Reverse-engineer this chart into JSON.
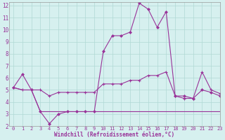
{
  "xlabel": "Windchill (Refroidissement éolien,°C)",
  "xlim": [
    -0.5,
    23
  ],
  "ylim": [
    2,
    12.3
  ],
  "yticks": [
    2,
    3,
    4,
    5,
    6,
    7,
    8,
    9,
    10,
    11,
    12
  ],
  "xticks": [
    0,
    1,
    2,
    3,
    4,
    5,
    6,
    7,
    8,
    9,
    10,
    11,
    12,
    13,
    14,
    15,
    16,
    17,
    18,
    19,
    20,
    21,
    22,
    23
  ],
  "line_color": "#993399",
  "bg_color": "#d6f0ef",
  "grid_color": "#b0d8d4",
  "line1_x": [
    0,
    1,
    2,
    3,
    4,
    5,
    6,
    7,
    8,
    9,
    10,
    11,
    12,
    13,
    14,
    15,
    16,
    17,
    18,
    19,
    20,
    21,
    22,
    23
  ],
  "line1_y": [
    5.2,
    6.3,
    5.0,
    3.2,
    2.2,
    3.0,
    3.2,
    3.2,
    3.2,
    3.2,
    8.2,
    9.5,
    9.5,
    9.8,
    12.2,
    11.7,
    10.2,
    11.5,
    4.5,
    4.5,
    4.3,
    5.0,
    4.8,
    4.5
  ],
  "line2_x": [
    0,
    1,
    2,
    3,
    4,
    5,
    6,
    7,
    8,
    9,
    10,
    11,
    12,
    13,
    14,
    15,
    16,
    17,
    18,
    19,
    20,
    21,
    22,
    23
  ],
  "line2_y": [
    5.2,
    5.0,
    5.0,
    5.0,
    4.5,
    4.8,
    4.8,
    4.8,
    4.8,
    4.8,
    5.5,
    5.5,
    5.5,
    5.8,
    5.8,
    6.2,
    6.2,
    6.5,
    4.5,
    4.3,
    4.3,
    6.5,
    5.0,
    4.7
  ],
  "line3_x": [
    0,
    1,
    2,
    3,
    4,
    5,
    6,
    7,
    8,
    9,
    10,
    11,
    12,
    13,
    14,
    15,
    16,
    17,
    18,
    19,
    20,
    21,
    22,
    23
  ],
  "line3_y": [
    5.2,
    5.0,
    5.0,
    3.2,
    3.2,
    3.2,
    3.2,
    3.2,
    3.2,
    3.2,
    3.2,
    3.2,
    3.2,
    3.2,
    3.2,
    3.2,
    3.2,
    3.2,
    3.2,
    3.2,
    3.2,
    3.2,
    3.2,
    3.2
  ]
}
